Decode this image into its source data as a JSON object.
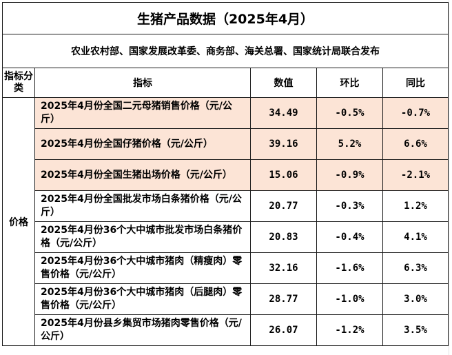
{
  "title": "生猪产品数据（2025年4月）",
  "source": "农业农村部、国家发展改革委、商务部、海关总署、国家统计局联合发布",
  "headers": {
    "category": "指标分类",
    "indicator": "指标",
    "value": "数值",
    "mom": "环比",
    "yoy": "同比"
  },
  "category": "价格",
  "rows": [
    {
      "indicator": "2025年4月份全国二元母猪销售价格（元/公斤）",
      "value": "34.49",
      "mom": "-0.5%",
      "yoy": "-0.7%"
    },
    {
      "indicator": "2025年4月份全国仔猪价格（元/公斤）",
      "value": "39.16",
      "mom": "5.2%",
      "yoy": "6.6%"
    },
    {
      "indicator": "2025年4月份全国生猪出场价格（元/公斤）",
      "value": "15.06",
      "mom": "-0.9%",
      "yoy": "-2.1%"
    },
    {
      "indicator": "2025年4月份全国批发市场白条猪价格（元/公斤）",
      "value": "20.77",
      "mom": "-0.3%",
      "yoy": "1.2%"
    },
    {
      "indicator": "2025年4月份36个大中城市批发市场白条猪价格（元/公斤）",
      "value": "20.83",
      "mom": "-0.4%",
      "yoy": "4.1%"
    },
    {
      "indicator": "2025年4月份36个大中城市猪肉（精瘦肉）零售价格（元/公斤）",
      "value": "32.16",
      "mom": "-1.6%",
      "yoy": "6.3%"
    },
    {
      "indicator": "2025年4月份36个大中城市猪肉（后腿肉）零售价格（元/公斤）",
      "value": "28.77",
      "mom": "-1.0%",
      "yoy": "3.0%"
    },
    {
      "indicator": "2025年4月份县乡集贸市场猪肉零售价格（元/公斤）",
      "value": "26.07",
      "mom": "-1.2%",
      "yoy": "3.5%"
    }
  ],
  "colors": {
    "highlight": "#fce4d6",
    "border": "#1a1a1a"
  }
}
